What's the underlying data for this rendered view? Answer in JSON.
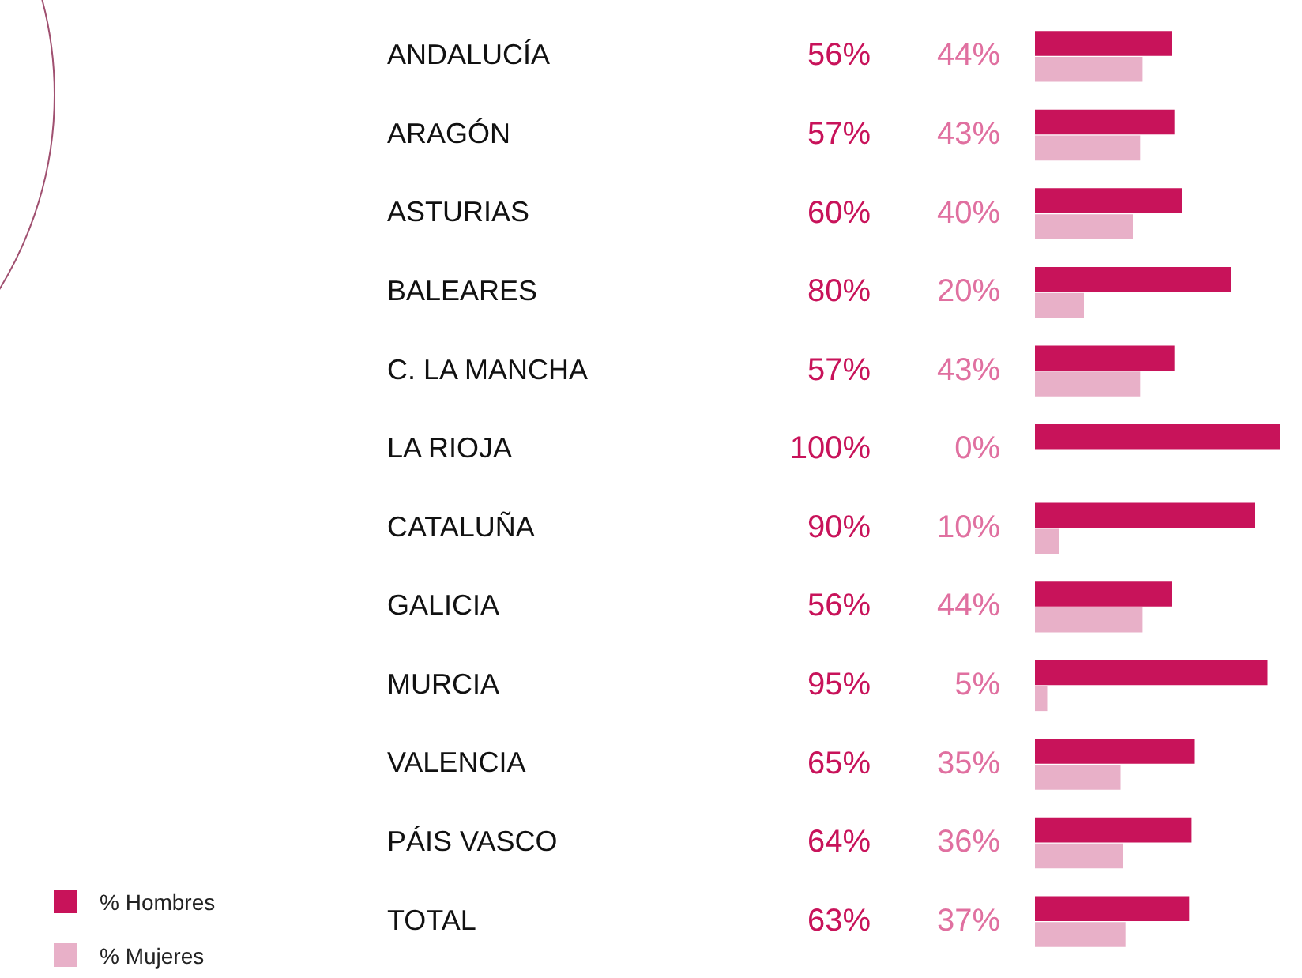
{
  "chart_data": {
    "type": "bar",
    "orientation": "horizontal",
    "categories": [
      "ANDALUCÍA",
      "ARAGÓN",
      "ASTURIAS",
      "BALEARES",
      "C. LA MANCHA",
      "LA RIOJA",
      "CATALUÑA",
      "GALICIA",
      "MURCIA",
      "VALENCIA",
      "PÁIS VASCO",
      "TOTAL"
    ],
    "series": [
      {
        "name": "% Hombres",
        "color": "#c8135a",
        "values": [
          56,
          57,
          60,
          80,
          57,
          100,
          90,
          56,
          95,
          65,
          64,
          63
        ],
        "value_labels": [
          "56%",
          "57%",
          "60%",
          "80%",
          "57%",
          "100%",
          "90%",
          "56%",
          "95%",
          "65%",
          "64%",
          "63%"
        ]
      },
      {
        "name": "% Mujeres",
        "color": "#e8b0c8",
        "values": [
          44,
          43,
          40,
          20,
          43,
          0,
          10,
          44,
          5,
          35,
          36,
          37
        ],
        "value_labels": [
          "44%",
          "43%",
          "40%",
          "20%",
          "43%",
          "0%",
          "10%",
          "44%",
          "5%",
          "35%",
          "36%",
          "37%"
        ]
      }
    ],
    "xlim": [
      0,
      100
    ],
    "tick_labels": "y",
    "grid": false,
    "legend": "bottom left"
  }
}
